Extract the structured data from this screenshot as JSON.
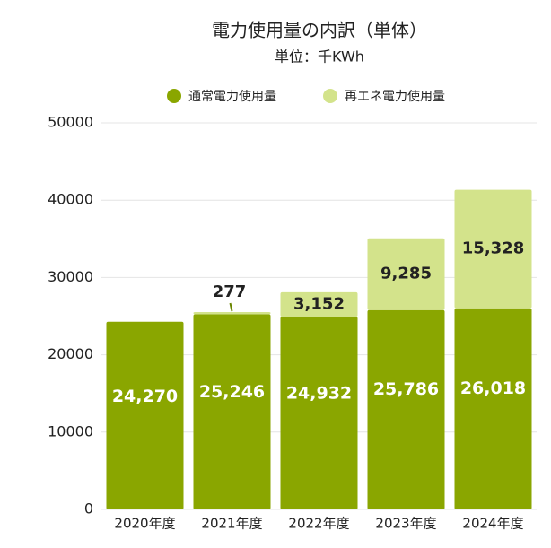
{
  "chart_data": {
    "type": "stacked_bar",
    "title": "電力使用量の内訳（単体）",
    "subtitle": "単位：千KWh",
    "categories": [
      "2020年度",
      "2021年度",
      "2022年度",
      "2023年度",
      "2024年度"
    ],
    "series": [
      {
        "name": "通常電力使用量",
        "color": "#8aa600",
        "values": [
          24270,
          25246,
          24932,
          25786,
          26018
        ],
        "value_labels": [
          "24,270",
          "25,246",
          "24,932",
          "25,786",
          "26,018"
        ]
      },
      {
        "name": "再エネ電力使用量",
        "color": "#d3e38b",
        "values": [
          null,
          277,
          3152,
          9285,
          15328
        ],
        "value_labels": [
          null,
          "277",
          "3,152",
          "9,285",
          "15,328"
        ]
      }
    ],
    "ylim": [
      0,
      50000
    ],
    "yticks": [
      0,
      10000,
      20000,
      30000,
      40000,
      50000
    ],
    "grid": true,
    "legend": "top"
  }
}
